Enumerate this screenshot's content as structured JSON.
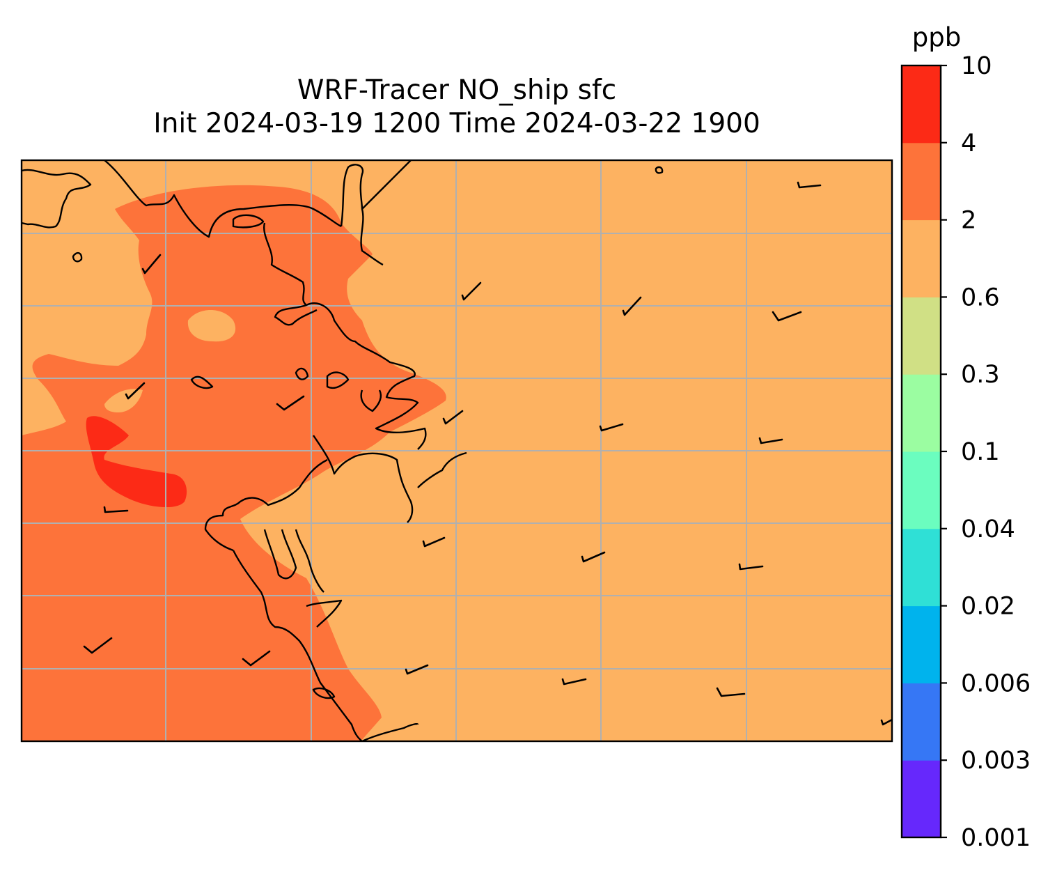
{
  "title": {
    "line1": "WRF-Tracer NO_ship sfc",
    "line2": "Init 2024-03-19 1200 Time 2024-03-22 1900"
  },
  "colorbar": {
    "unit": "ppb",
    "levels": [
      "0.001",
      "0.003",
      "0.006",
      "0.02",
      "0.04",
      "0.1",
      "0.3",
      "0.6",
      "2",
      "4",
      "10"
    ],
    "colors": [
      "#6628fc",
      "#3677f5",
      "#00b3ed",
      "#2fe0d6",
      "#6bfdbf",
      "#9bfda1",
      "#d0e085",
      "#fdb261",
      "#fd733a",
      "#fc2a16"
    ]
  },
  "map": {
    "gridlines": true,
    "fill_colors": {
      "background": "#fdb261",
      "plume": "#fd733a",
      "core": "#fc2a16"
    },
    "wind_barbs": 23
  }
}
